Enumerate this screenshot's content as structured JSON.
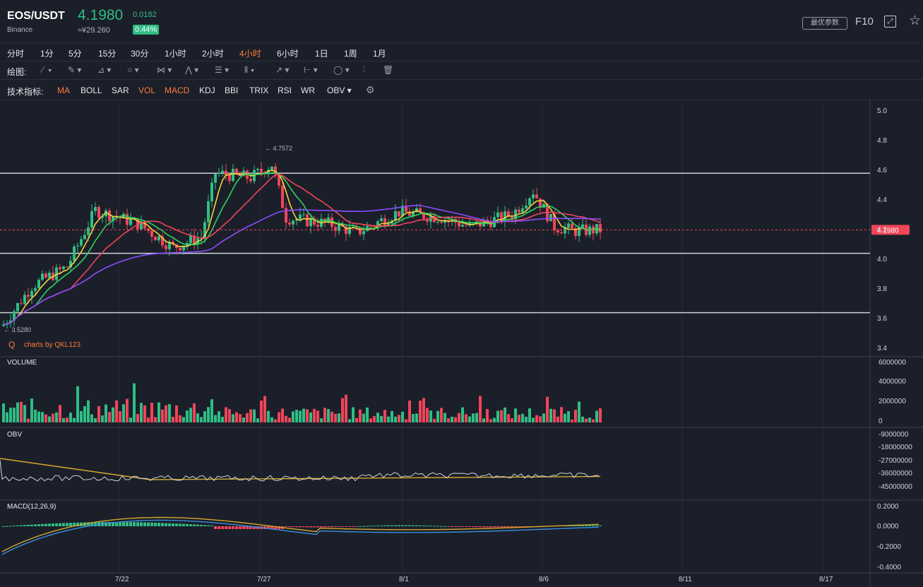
{
  "header": {
    "symbol": "EOS/USDT",
    "exchange": "Binance",
    "price": "4.1980",
    "price_cny": "≈¥29.260",
    "change": "0.0182",
    "change_pct": "0.44%",
    "best_params": "最优参数",
    "f10": "F10",
    "up_color": "#2fbd85",
    "down_color": "#f0455a",
    "active_color": "#ff7b3a"
  },
  "timeframes": [
    "分时",
    "1分",
    "5分",
    "15分",
    "30分",
    "1小时",
    "2小时",
    "4小时",
    "6小时",
    "1日",
    "1周",
    "1月"
  ],
  "active_timeframe": "4小时",
  "draw_label": "绘图:",
  "indicators_label": "技术指标:",
  "indicators": [
    {
      "name": "MA",
      "on": true
    },
    {
      "name": "BOLL",
      "on": false
    },
    {
      "name": "SAR",
      "on": false
    },
    {
      "name": "VOL",
      "on": true
    },
    {
      "name": "MACD",
      "on": true
    },
    {
      "name": "KDJ",
      "on": false
    },
    {
      "name": "BBI",
      "on": false
    },
    {
      "name": "TRIX",
      "on": false
    },
    {
      "name": "RSI",
      "on": false
    },
    {
      "name": "WR",
      "on": false
    },
    {
      "name": "OBV ▾",
      "on": false
    }
  ],
  "main_pane": {
    "y_ticks": [
      "5.0",
      "4.8",
      "4.6",
      "4.4",
      "4.2",
      "4.0",
      "3.8",
      "3.6",
      "3.4"
    ],
    "high_label": "← 4.7572",
    "low_label": "← 3.5280",
    "last_price_tag": "4.1980",
    "watermark": "charts by QKL123"
  },
  "volume_pane": {
    "title": "VOLUME",
    "y_ticks": [
      "6000000",
      "4000000",
      "2000000",
      "0"
    ]
  },
  "obv_pane": {
    "title": "OBV",
    "y_ticks": [
      "-9000000",
      "-18000000",
      "-27000000",
      "-36000000",
      "-45000000"
    ]
  },
  "macd_pane": {
    "title": "MACD(12,26,9)",
    "y_ticks": [
      "0.2000",
      "0.0000",
      "-0.2000",
      "-0.4000"
    ]
  },
  "x_ticks": [
    "7/22",
    "7/27",
    "8/1",
    "8/6",
    "8/11",
    "8/17"
  ],
  "chart_data": {
    "type": "candlestick",
    "hlines": [
      4.58,
      4.04,
      3.64
    ],
    "last_price": 4.198,
    "period_high": 4.7572,
    "period_low": 3.528
  }
}
